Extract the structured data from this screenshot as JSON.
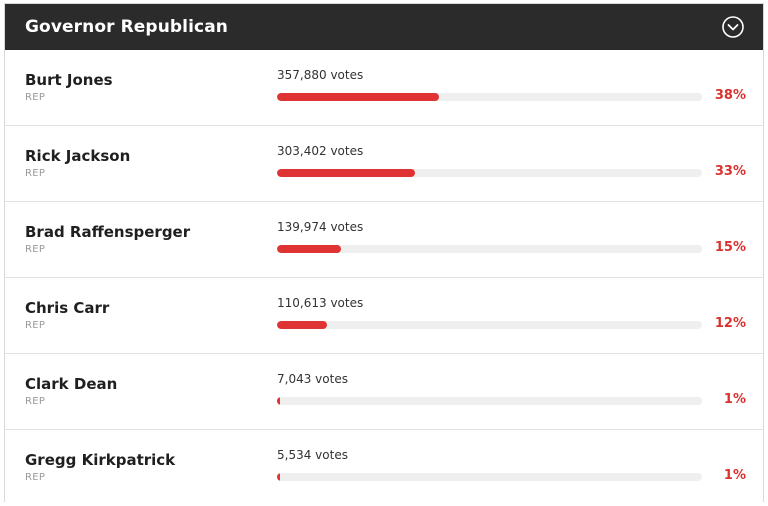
{
  "header": {
    "title": "Governor Republican",
    "toggle_icon": "chevron-down-circle-icon"
  },
  "colors": {
    "header_bg": "#2b2b2b",
    "bar_fill": "#e03434",
    "percent_text": "#d9322f"
  },
  "candidates": [
    {
      "name": "Burt Jones",
      "party": "REP",
      "votes": "357,880 votes",
      "percent": "38%",
      "share": 0.38
    },
    {
      "name": "Rick Jackson",
      "party": "REP",
      "votes": "303,402 votes",
      "percent": "33%",
      "share": 0.325
    },
    {
      "name": "Brad Raffensperger",
      "party": "REP",
      "votes": "139,974 votes",
      "percent": "15%",
      "share": 0.15
    },
    {
      "name": "Chris Carr",
      "party": "REP",
      "votes": "110,613 votes",
      "percent": "12%",
      "share": 0.118
    },
    {
      "name": "Clark Dean",
      "party": "REP",
      "votes": "7,043 votes",
      "percent": "1%",
      "share": 0.007
    },
    {
      "name": "Gregg Kirkpatrick",
      "party": "REP",
      "votes": "5,534 votes",
      "percent": "1%",
      "share": 0.006
    }
  ]
}
